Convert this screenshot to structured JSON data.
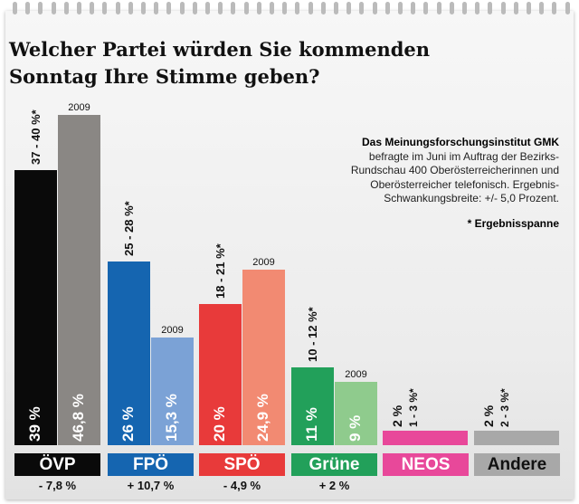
{
  "title_line1": "Welcher Partei würden Sie kommenden",
  "title_line2": "Sonntag Ihre Stimme geben?",
  "note": {
    "heading": "Das Meinungsforschungsinstitut GMK",
    "lines": [
      "befragte im Juni im Auftrag der Bezirks-",
      "Rundschau 400 Oberösterreicherinnen und",
      "Oberösterreicher telefonisch. Ergebnis-",
      "Schwankungsbreite: +/- 5,0 Prozent."
    ],
    "footnote": "* Ergebnisspanne"
  },
  "chart_data": {
    "type": "bar",
    "title": "Welcher Partei würden Sie kommenden Sonntag Ihre Stimme geben?",
    "categories": [
      "ÖVP",
      "FPÖ",
      "SPÖ",
      "Grüne",
      "NEOS",
      "Andere"
    ],
    "series": [
      {
        "values": [
          39,
          26,
          20,
          11,
          2,
          2
        ],
        "labels": [
          "39 %",
          "26 %",
          "20 %",
          "11 %",
          "2 %",
          "2 %"
        ],
        "ranges": [
          "37 - 40 %*",
          "25 - 28 %*",
          "18 - 21 %*",
          "10 - 12 %*",
          "1 - 3 %*",
          "2 - 3 %*"
        ]
      },
      {
        "name": "2009",
        "values": [
          46.8,
          15.3,
          24.9,
          9,
          null,
          null
        ],
        "labels": [
          "46,8 %",
          "15,3 %",
          "24,9 %",
          "9 %",
          "",
          ""
        ]
      }
    ],
    "changes": [
      "- 7,8 %",
      "+ 10,7 %",
      "- 4,9 %",
      "+ 2 %",
      "",
      ""
    ],
    "colors": {
      "current": [
        "#0a0a0a",
        "#1565b0",
        "#e83a3a",
        "#22a05a",
        "#e8489a",
        "#a8a8a8"
      ],
      "previous": [
        "#8a8784",
        "#7ba2d6",
        "#f28a72",
        "#8fcb8d"
      ],
      "label_text": [
        "#ffffff",
        "#ffffff",
        "#ffffff",
        "#ffffff",
        "#ffffff",
        "#111111"
      ]
    },
    "ylim": [
      0,
      50
    ],
    "grid": false
  }
}
